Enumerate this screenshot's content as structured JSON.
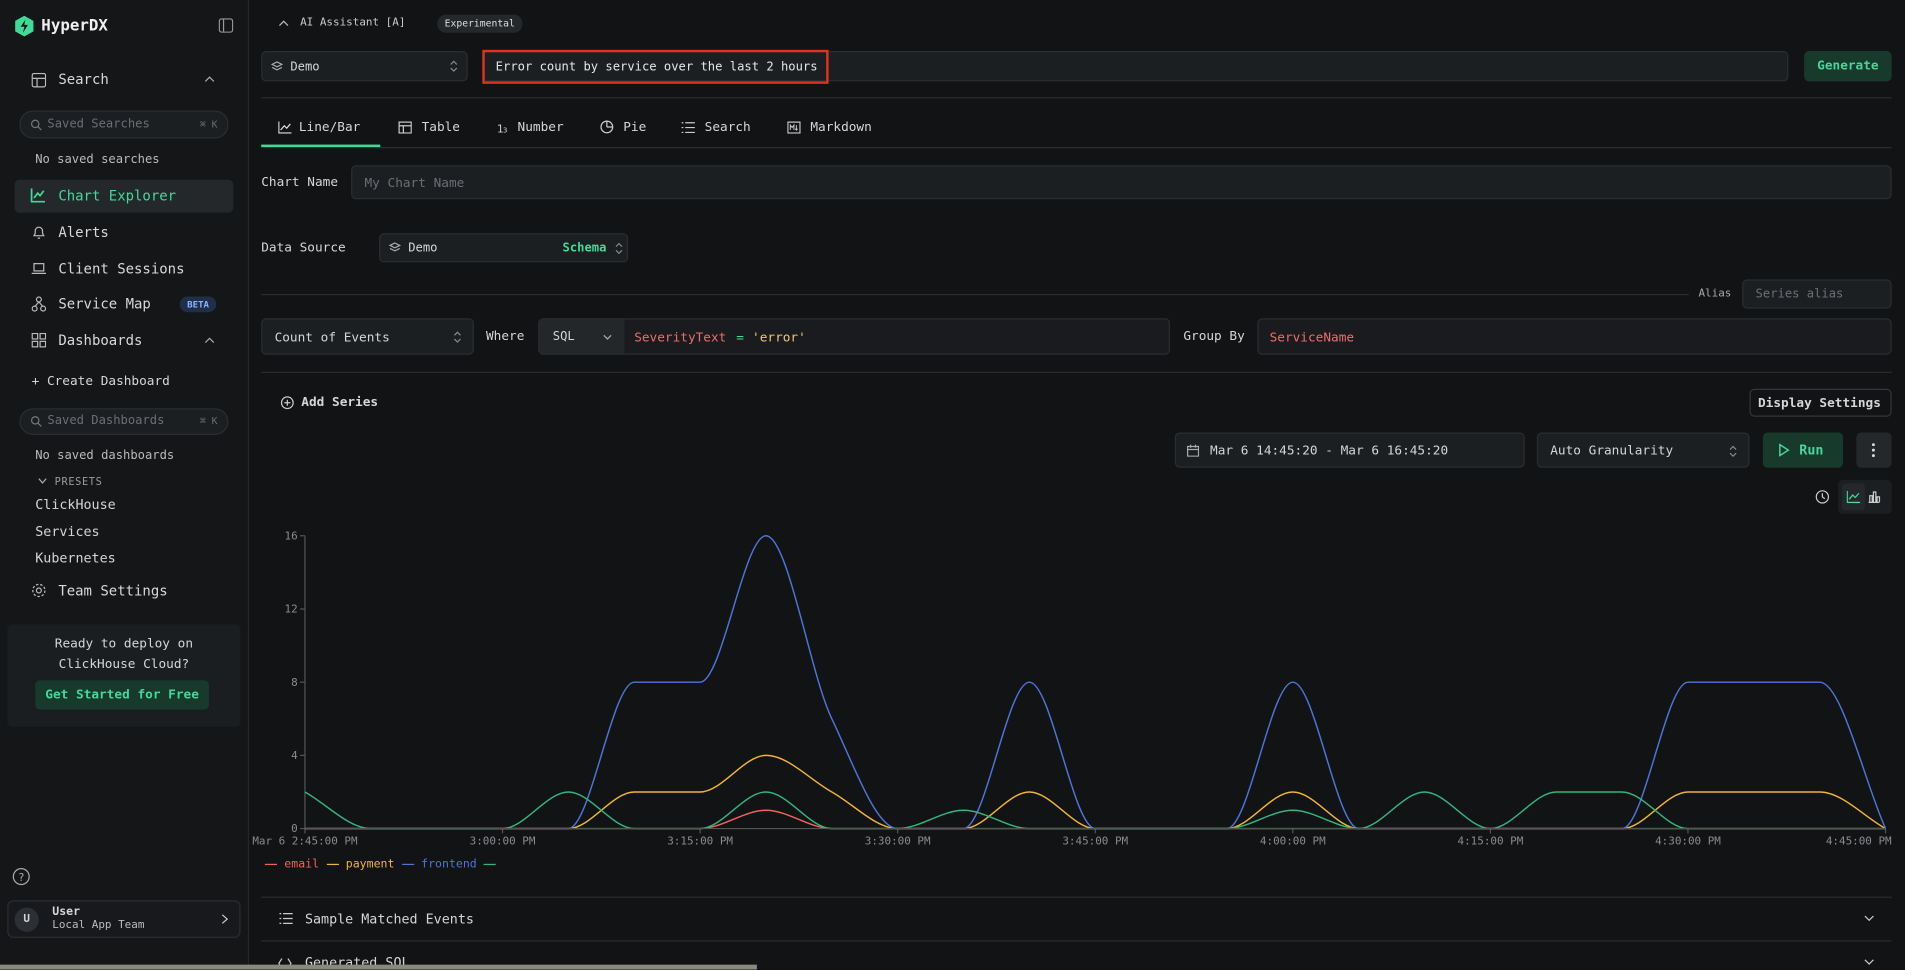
{
  "sidebar": {
    "brand": "HyperDX",
    "search": "Search",
    "saved_searches_placeholder": "Saved Searches",
    "saved_searches_shortcut": "⌘ K",
    "no_saved_searches": "No saved searches",
    "nav": [
      "Chart Explorer",
      "Alerts",
      "Client Sessions",
      "Service Map",
      "Dashboards"
    ],
    "beta": "BETA",
    "create_dashboard": "+ Create Dashboard",
    "saved_dashboards_placeholder": "Saved Dashboards",
    "saved_dashboards_shortcut": "⌘ K",
    "no_saved_dashboards": "No saved dashboards",
    "presets_label": "PRESETS",
    "presets": [
      "ClickHouse",
      "Services",
      "Kubernetes"
    ],
    "team_settings": "Team Settings",
    "promo_text": "Ready to deploy on ClickHouse Cloud?",
    "promo_button": "Get Started for Free",
    "user_initial": "U",
    "user_name": "User",
    "user_team": "Local App Team"
  },
  "ai": {
    "toggle": "AI Assistant [A]",
    "badge": "Experimental",
    "source": "Demo",
    "prompt": "Error count by service over the last 2 hours",
    "generate": "Generate"
  },
  "tabs": [
    "Line/Bar",
    "Table",
    "Number",
    "Pie",
    "Search",
    "Markdown"
  ],
  "form": {
    "chart_name_label": "Chart Name",
    "chart_name_placeholder": "My Chart Name",
    "data_source_label": "Data Source",
    "data_source": "Demo",
    "schema": "Schema",
    "alias_label": "Alias",
    "alias_placeholder": "Series alias",
    "aggregation": "Count of Events",
    "where_label": "Where",
    "where_language": "SQL",
    "where_field": "SeverityText",
    "where_operator": "=",
    "where_value": "'error'",
    "group_by_label": "Group By",
    "group_by": "ServiceName",
    "add_series": "Add Series",
    "display_settings": "Display Settings",
    "time_range": "Mar 6 14:45:20 - Mar 6 16:45:20",
    "granularity": "Auto Granularity",
    "run": "Run"
  },
  "chart_data": {
    "type": "line",
    "x": [
      "14:45",
      "14:50",
      "14:55",
      "15:00",
      "15:05",
      "15:10",
      "15:15",
      "15:20",
      "15:25",
      "15:30",
      "15:35",
      "15:40",
      "15:45",
      "15:50",
      "15:55",
      "16:00",
      "16:05",
      "16:10",
      "16:15",
      "16:20",
      "16:25",
      "16:30",
      "16:35",
      "16:40",
      "16:45"
    ],
    "xlim": [
      "14:45",
      "16:45"
    ],
    "xticks": [
      {
        "value": "14:45",
        "label": "Mar 6 2:45:00 PM"
      },
      {
        "value": "15:00",
        "label": "3:00:00 PM"
      },
      {
        "value": "15:15",
        "label": "3:15:00 PM"
      },
      {
        "value": "15:30",
        "label": "3:30:00 PM"
      },
      {
        "value": "15:45",
        "label": "3:45:00 PM"
      },
      {
        "value": "16:00",
        "label": "4:00:00 PM"
      },
      {
        "value": "16:15",
        "label": "4:15:00 PM"
      },
      {
        "value": "16:30",
        "label": "4:30:00 PM"
      },
      {
        "value": "16:45",
        "label": "4:45:00 PM"
      }
    ],
    "ylim": [
      0,
      16
    ],
    "yticks": [
      0,
      4,
      8,
      12,
      16
    ],
    "series": [
      {
        "name": "email",
        "color": "#f0625a",
        "values": [
          0,
          0,
          0,
          0,
          0,
          0,
          0,
          1,
          0,
          0,
          0,
          0,
          0,
          0,
          0,
          0,
          0,
          0,
          0,
          0,
          0,
          0,
          0,
          0,
          0
        ]
      },
      {
        "name": "payment",
        "color": "#f2b52e",
        "values": [
          0,
          0,
          0,
          0,
          0,
          2,
          2,
          4,
          2,
          0,
          0,
          2,
          0,
          0,
          0,
          2,
          0,
          0,
          0,
          0,
          0,
          2,
          2,
          2,
          0
        ]
      },
      {
        "name": "frontend",
        "color": "#4f74d9",
        "values": [
          0,
          0,
          0,
          0,
          0,
          8,
          8,
          16,
          6,
          0,
          0,
          8,
          0,
          0,
          0,
          8,
          0,
          0,
          0,
          0,
          0,
          8,
          8,
          8,
          0
        ]
      },
      {
        "name": null,
        "color": "#2fb67c",
        "values": [
          2,
          0,
          0,
          0,
          2,
          0,
          0,
          2,
          0,
          0,
          1,
          0,
          0,
          0,
          0,
          1,
          0,
          2,
          0,
          2,
          2,
          0,
          0,
          0,
          0
        ]
      }
    ]
  },
  "sections": [
    "Sample Matched Events",
    "Generated SQL"
  ]
}
